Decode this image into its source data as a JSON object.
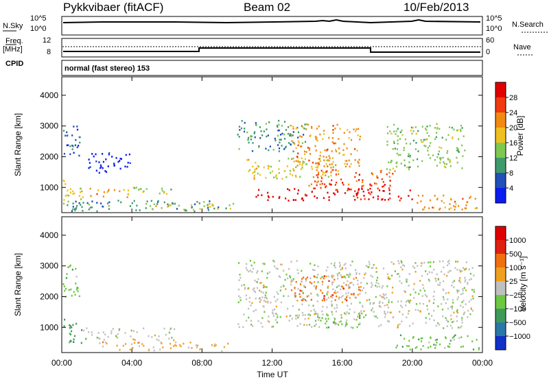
{
  "header": {
    "station": "Pykkvibaer (fitACF)",
    "beam": "Beam 02",
    "date": "10/Feb/2013"
  },
  "aux_panels": {
    "nsky_label": "N.Sky",
    "nsky_ticks": [
      "10^5",
      "10^0"
    ],
    "nsearch_label": "N.Search",
    "nsearch_ticks": [
      "10^5",
      "10^0"
    ],
    "freq_label_1": "Freq.",
    "freq_label_2": "[MHz]",
    "freq_ticks": [
      "12",
      "8"
    ],
    "nave_label": "Nave",
    "nave_ticks": [
      "60",
      "0"
    ],
    "cpid_label": "CPID",
    "cpid_value": "normal (fast stereo) 153"
  },
  "chart_data": [
    {
      "type": "heatmap",
      "name": "power",
      "ylabel": "Slant Range [km]",
      "xlabel": "",
      "ylim": [
        180,
        4600
      ],
      "yticks": [
        "1000",
        "2000",
        "3000",
        "4000"
      ],
      "colorbar_label": "Power [dB]",
      "colorbar_ticks": [
        "4",
        "8",
        "12",
        "16",
        "20",
        "24",
        "28"
      ],
      "colors": [
        "#0a1cf0",
        "#2050b8",
        "#3f9a6a",
        "#7fc850",
        "#f0c020",
        "#f08a10",
        "#f03a10",
        "#e00000"
      ],
      "blobs": [
        {
          "t0": 0.0,
          "t1": 1.1,
          "r0": 500,
          "r1": 1300,
          "level": 4
        },
        {
          "t0": 1.0,
          "t1": 3.8,
          "r0": 700,
          "r1": 1000,
          "level": 5
        },
        {
          "t0": 4.0,
          "t1": 6.3,
          "r0": 750,
          "r1": 1050,
          "level": 3
        },
        {
          "t0": 0.2,
          "t1": 9.5,
          "r0": 250,
          "r1": 600,
          "level": 2
        },
        {
          "t0": 5.0,
          "t1": 10.0,
          "r0": 300,
          "r1": 500,
          "level": 4
        },
        {
          "t0": 0.0,
          "t1": 1.0,
          "r0": 2000,
          "r1": 3100,
          "level": 1
        },
        {
          "t0": 1.5,
          "t1": 4.0,
          "r0": 1500,
          "r1": 2200,
          "level": 0
        },
        {
          "t0": 10.5,
          "t1": 16.0,
          "r0": 1300,
          "r1": 2000,
          "level": 4
        },
        {
          "t0": 10.0,
          "t1": 14.0,
          "r0": 2200,
          "r1": 3200,
          "level": 2
        },
        {
          "t0": 13.0,
          "t1": 17.0,
          "r0": 1700,
          "r1": 3100,
          "level": 5
        },
        {
          "t0": 14.0,
          "t1": 19.0,
          "r0": 900,
          "r1": 1600,
          "level": 6
        },
        {
          "t0": 18.5,
          "t1": 23.0,
          "r0": 1600,
          "r1": 3100,
          "level": 3
        },
        {
          "t0": 20.0,
          "t1": 23.8,
          "r0": 300,
          "r1": 800,
          "level": 5
        },
        {
          "t0": 11.0,
          "t1": 20.0,
          "r0": 600,
          "r1": 1000,
          "level": 7
        }
      ]
    },
    {
      "type": "heatmap",
      "name": "velocity",
      "ylabel": "Slant Range [km]",
      "xlabel": "Time UT",
      "ylim": [
        180,
        4600
      ],
      "yticks": [
        "1000",
        "2000",
        "3000",
        "4000"
      ],
      "xticks": [
        "00:00",
        "04:00",
        "08:00",
        "12:00",
        "16:00",
        "20:00",
        "00:00"
      ],
      "colorbar_label": "Velocity [m s⁻¹]",
      "colorbar_ticks": [
        "1000",
        "500",
        "100",
        "25",
        "−25",
        "−100",
        "−500",
        "−1000"
      ],
      "colors": [
        "#1030c8",
        "#2a78a8",
        "#3f9a5a",
        "#6cc840",
        "#c0c0c0",
        "#f0a020",
        "#f07010",
        "#e02010",
        "#e00000"
      ],
      "blobs": [
        {
          "t0": 0.0,
          "t1": 1.1,
          "r0": 500,
          "r1": 1300,
          "level": 2
        },
        {
          "t0": 0.0,
          "t1": 1.0,
          "r0": 2000,
          "r1": 3100,
          "level": 3
        },
        {
          "t0": 1.2,
          "t1": 6.5,
          "r0": 600,
          "r1": 1000,
          "level": 4
        },
        {
          "t0": 2.0,
          "t1": 9.5,
          "r0": 250,
          "r1": 550,
          "level": 5
        },
        {
          "t0": 10.0,
          "t1": 23.5,
          "r0": 1000,
          "r1": 3200,
          "level": 4
        },
        {
          "t0": 13.0,
          "t1": 17.0,
          "r0": 1900,
          "r1": 2700,
          "level": 6
        },
        {
          "t0": 14.0,
          "t1": 17.0,
          "r0": 1000,
          "r1": 1500,
          "level": 3
        },
        {
          "t0": 19.0,
          "t1": 23.8,
          "r0": 300,
          "r1": 800,
          "level": 3
        }
      ]
    }
  ]
}
